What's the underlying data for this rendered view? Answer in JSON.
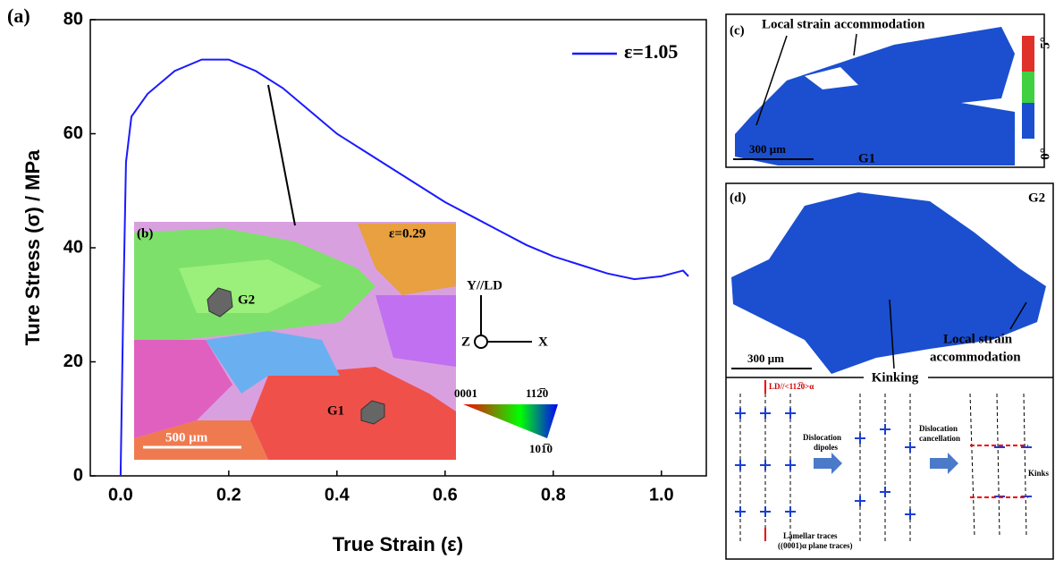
{
  "chart_data": {
    "type": "line",
    "panel_label": "(a)",
    "x_label": "True Strain (ε)",
    "y_label": "Ture Stress (σ)  / MPa",
    "xlim": [
      -0.056,
      1.083
    ],
    "ylim": [
      0,
      80
    ],
    "xticks": [
      {
        "value": 0,
        "label": "0.0"
      },
      {
        "value": 0.2,
        "label": "0.2"
      },
      {
        "value": 0.4,
        "label": "0.4"
      },
      {
        "value": 0.6,
        "label": "0.6"
      },
      {
        "value": 0.8,
        "label": "0.8"
      },
      {
        "value": 1,
        "label": "1.0"
      }
    ],
    "yticks": [
      0,
      20,
      40,
      60,
      80
    ],
    "x": [
      0,
      0.005,
      0.01,
      0.02,
      0.05,
      0.1,
      0.15,
      0.2,
      0.25,
      0.3,
      0.35,
      0.4,
      0.45,
      0.5,
      0.55,
      0.6,
      0.65,
      0.7,
      0.75,
      0.8,
      0.85,
      0.9,
      0.95,
      1.0,
      1.04,
      1.05
    ],
    "series": [
      {
        "name": "ε=1.05",
        "color": "#1a1aff",
        "values": [
          0,
          30,
          55,
          63,
          67,
          71,
          73,
          73,
          71,
          68,
          64,
          60,
          57,
          54,
          51,
          48,
          45.5,
          43,
          40.5,
          38.5,
          37,
          35.5,
          34.5,
          35,
          36,
          35
        ]
      }
    ],
    "legend": "upper right"
  },
  "insets": {
    "b": {
      "label": "(b)",
      "strain": "ε=0.29",
      "grain_1": "G2",
      "grain_2": "G1",
      "scale_bar": "500 μm",
      "axis_y": "Y//LD",
      "axis_z": "Z",
      "axis_x": "X",
      "ipf_1": "0001",
      "ipf_2": "112̅0",
      "ipf_3": "101̅0"
    },
    "c": {
      "label": "(c)",
      "annotation": "Local strain accommodation",
      "scale_bar": "300 μm",
      "grain": "G1",
      "colorbar_max": "5°",
      "colorbar_min": "0°"
    },
    "d": {
      "label": "(d)",
      "grain": "G2",
      "annotation_1": "Local strain",
      "annotation_2": "accommodation",
      "scale_bar": "300 μm",
      "kinking": "Kinking"
    },
    "schematic": {
      "direction": "LD//<112̅0>α",
      "dipoles_1": "Dislocation",
      "dipoles_2": "dipoles",
      "cancel_1": "Dislocation",
      "cancel_2": "cancellation",
      "kinks": "Kinks",
      "traces_1": "Lamellar traces",
      "traces_2": "((0001)α plane traces)"
    }
  }
}
